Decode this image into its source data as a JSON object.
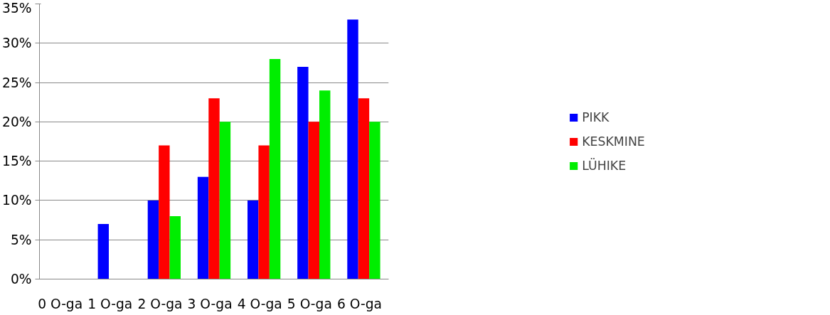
{
  "chart_data": {
    "type": "bar",
    "categories": [
      "0   O-ga",
      "1   O-ga",
      "2   O-ga",
      "3   O-ga",
      "4   O-ga",
      "5   O-ga",
      "6   O-ga"
    ],
    "series": [
      {
        "name": "PIKK",
        "color": "#0000ff",
        "values": [
          0,
          7,
          10,
          13,
          10,
          27,
          33
        ]
      },
      {
        "name": "KESKMINE",
        "color": "#ff0000",
        "values": [
          0,
          0,
          17,
          23,
          17,
          20,
          23
        ]
      },
      {
        "name": "LÜHIKE",
        "color": "#00ee00",
        "values": [
          0,
          0,
          8,
          20,
          28,
          24,
          20
        ]
      }
    ],
    "ylim": [
      0,
      35
    ],
    "yticks": [
      {
        "value": 0,
        "label": "0%"
      },
      {
        "value": 5,
        "label": "5%"
      },
      {
        "value": 10,
        "label": "10%"
      },
      {
        "value": 15,
        "label": "15%"
      },
      {
        "value": 20,
        "label": "20%"
      },
      {
        "value": 25,
        "label": "25%"
      },
      {
        "value": 30,
        "label": "30%"
      },
      {
        "value": 35,
        "label": "35%"
      }
    ],
    "grid": "y",
    "legend": "right"
  }
}
